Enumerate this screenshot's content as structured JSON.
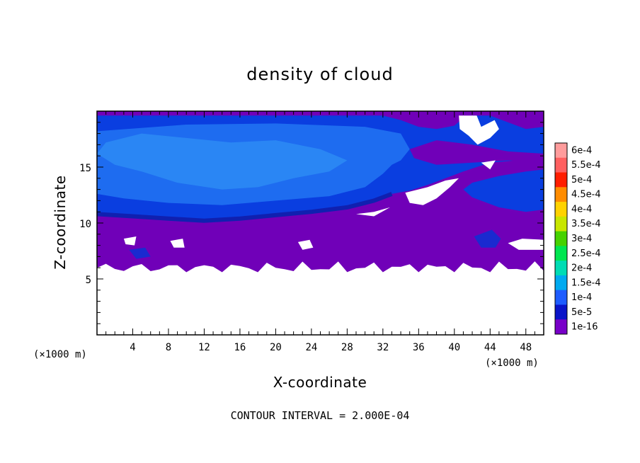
{
  "chart_data": {
    "type": "heatmap",
    "title": "density of cloud",
    "xlabel": "X-coordinate",
    "ylabel": "Z-coordinate",
    "x_unit": "(×1000 m)",
    "x_unit_right": "(×1000 m)",
    "xlim": [
      0,
      50
    ],
    "ylim": [
      0,
      20
    ],
    "x_ticks": [
      4,
      8,
      12,
      16,
      20,
      24,
      28,
      32,
      36,
      40,
      44,
      48
    ],
    "y_ticks": [
      5,
      10,
      15
    ],
    "contour_interval_text": "CONTOUR INTERVAL = 2.000E-04",
    "colorbar": {
      "levels": [
        "6e-4",
        "5.5e-4",
        "5e-4",
        "4.5e-4",
        "4e-4",
        "3.5e-4",
        "3e-4",
        "2.5e-4",
        "2e-4",
        "1.5e-4",
        "1e-4",
        "5e-5",
        "1e-16"
      ],
      "colors": [
        "#ff9c9c",
        "#ff6060",
        "#ff1e00",
        "#ff8c00",
        "#ffd200",
        "#c8e600",
        "#46d200",
        "#00e650",
        "#00dcb4",
        "#00aaf0",
        "#1e5cff",
        "#0a14c8",
        "#7800c8"
      ]
    },
    "fields": {
      "cloud_bottom_z": 6.0,
      "upper_blue_top_z": 19.5,
      "upper_blue_base_z": 10.3,
      "dark_core_z": [
        15.0,
        17.5
      ]
    }
  }
}
